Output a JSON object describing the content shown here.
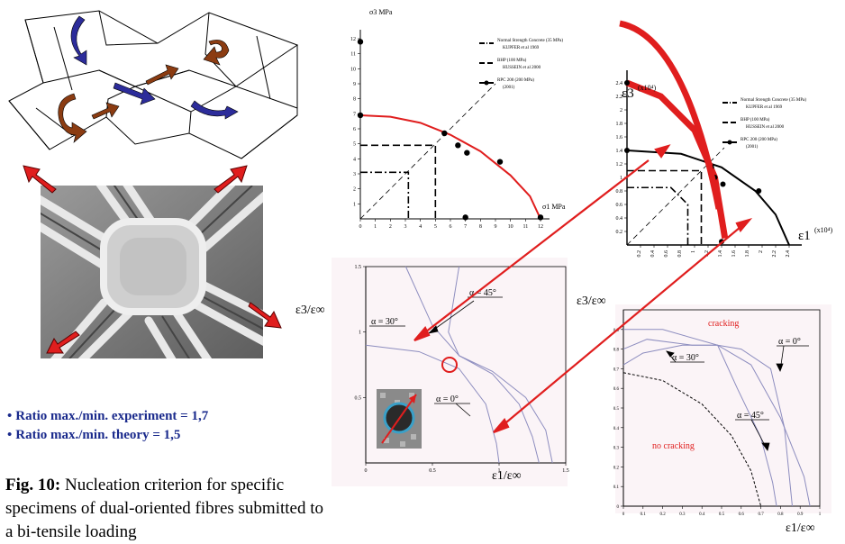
{
  "colors": {
    "accent_red": "#e01e1e",
    "arrow_blue": "#2c2c9a",
    "arrow_brown": "#8b3c12",
    "bullet_blue": "#1a2a8c",
    "panel_bg": "#fbf4f7"
  },
  "bullets": [
    {
      "text": "Ratio max./min. experiment = 1,7"
    },
    {
      "text": "Ratio max./min. theory = 1,5"
    }
  ],
  "caption": {
    "label": "Fig. 10:",
    "text": " Nucleation criterion for specific specimens of dual-oriented fibres submitted to a bi-tensile loading"
  },
  "chart_data": [
    {
      "type": "line",
      "panel": "stress",
      "ylabel": "σ3 MPa",
      "xlabel": "σ1 MPa",
      "xlim": [
        0,
        12
      ],
      "ylim": [
        0,
        12
      ],
      "x_ticks": [
        "0",
        "1",
        "2",
        "3",
        "4",
        "5",
        "6",
        "7",
        "8",
        "9",
        "10",
        "11",
        "12"
      ],
      "y_ticks": [
        "1",
        "2",
        "3",
        "4",
        "5",
        "6",
        "7",
        "8",
        "9",
        "10",
        "11",
        "12"
      ],
      "legend": [
        {
          "name": "Normal Strength Concrete (35 MPa)",
          "sub": "KUPFER et al 1969"
        },
        {
          "name": "BHP (100 MPa)",
          "sub": "HUSSEIN et al 2000"
        },
        {
          "name": "RPC 200 (200 MPa)",
          "sub": "(2001)"
        }
      ],
      "series": [
        {
          "name": "Normal Strength Concrete (35 MPa)",
          "x": [
            0,
            3.2,
            3.2
          ],
          "y": [
            3.1,
            3.1,
            0
          ]
        },
        {
          "name": "BHP (100 MPa)",
          "x": [
            0,
            5.0,
            5.0
          ],
          "y": [
            4.9,
            4.9,
            0
          ]
        },
        {
          "name": "RPC 200 (200 MPa)",
          "x": [
            0,
            2,
            4,
            6,
            8,
            10,
            11.3,
            12
          ],
          "y": [
            6.9,
            6.8,
            6.4,
            5.6,
            4.5,
            2.9,
            1.5,
            0
          ]
        }
      ],
      "points": [
        {
          "x": 0,
          "y": 11.8
        },
        {
          "x": 0,
          "y": 6.9
        },
        {
          "x": 5.6,
          "y": 5.7
        },
        {
          "x": 6.5,
          "y": 4.9
        },
        {
          "x": 7.1,
          "y": 4.4
        },
        {
          "x": 9.3,
          "y": 3.8
        },
        {
          "x": 7.0,
          "y": 0.1
        },
        {
          "x": 12.0,
          "y": 0.1
        }
      ]
    },
    {
      "type": "line",
      "panel": "strain",
      "ylabel": "ε3",
      "ylabel_unit": "(x10⁴)",
      "xlabel": "ε1",
      "xlabel_unit": "(x10⁴)",
      "xlim": [
        0,
        2.4
      ],
      "ylim": [
        0,
        2.4
      ],
      "x_ticks": [
        "0.2",
        "0.4",
        "0.6",
        "0.8",
        "1",
        "1.2",
        "1.4",
        "1.6",
        "1.8",
        "2",
        "2.2",
        "2.4"
      ],
      "y_ticks": [
        "0.2",
        "0.4",
        "0.6",
        "0.8",
        "1",
        "1.2",
        "1.4",
        "1.6",
        "1.8",
        "2",
        "2.2",
        "2.4"
      ],
      "legend": [
        {
          "name": "Normal Strength Concrete (35 MPa)",
          "sub": "KUPFER et al 1969"
        },
        {
          "name": "BHP (100 MPa)",
          "sub": "HUSSEIN et al 2000"
        },
        {
          "name": "RPC 200 (200 MPa)",
          "sub": "(2001)"
        }
      ],
      "series": [
        {
          "name": "Normal Strength Concrete (35 MPa)",
          "x": [
            0,
            0.65,
            0.9,
            0.9
          ],
          "y": [
            0.85,
            0.85,
            0.6,
            0
          ]
        },
        {
          "name": "BHP (100 MPa)",
          "x": [
            0,
            1.1,
            1.1
          ],
          "y": [
            1.1,
            1.1,
            0
          ]
        },
        {
          "name": "RPC 200 (200 MPa)",
          "x": [
            0,
            0.8,
            1.4,
            1.9,
            2.2,
            2.4
          ],
          "y": [
            1.4,
            1.35,
            1.15,
            0.8,
            0.45,
            0
          ]
        },
        {
          "name": "bold",
          "x": [
            0,
            0.5,
            1.0,
            1.3,
            1.45
          ],
          "y": [
            2.4,
            2.2,
            1.7,
            1.0,
            0.1
          ]
        }
      ],
      "points": [
        {
          "x": 0,
          "y": 2.4
        },
        {
          "x": 0,
          "y": 1.4
        },
        {
          "x": 1.25,
          "y": 1.15
        },
        {
          "x": 1.3,
          "y": 1.0
        },
        {
          "x": 1.42,
          "y": 0.9
        },
        {
          "x": 1.95,
          "y": 0.8
        },
        {
          "x": 1.4,
          "y": 0.05
        }
      ]
    },
    {
      "type": "line",
      "panel": "theory-left",
      "ylabel": "ε3/ε∞",
      "xlabel": "ε1/ε∞",
      "xlim": [
        0,
        1.5
      ],
      "ylim": [
        0,
        1.5
      ],
      "x_ticks": [
        "0",
        "0.5",
        "1",
        "1.5"
      ],
      "y_ticks": [
        "0.5",
        "1",
        "1.5"
      ],
      "annotations": [
        "α = 30°",
        "α = 45°",
        "α = 0°"
      ],
      "series": [
        {
          "name": "α = 0°",
          "x": [
            0,
            0.4,
            0.7,
            0.9,
            0.98,
            1.0
          ],
          "y": [
            0.9,
            0.85,
            0.72,
            0.45,
            0.15,
            0
          ]
        },
        {
          "name": "α = 30°",
          "x": [
            0.3,
            0.5,
            0.7,
            0.95,
            1.15,
            1.25,
            1.3
          ],
          "y": [
            1.5,
            1.05,
            0.82,
            0.68,
            0.45,
            0.2,
            0
          ]
        },
        {
          "name": "α = 45°",
          "x": [
            0.7,
            0.62,
            0.7,
            0.95,
            1.2,
            1.35,
            1.4
          ],
          "y": [
            1.5,
            1.0,
            0.82,
            0.7,
            0.5,
            0.25,
            0
          ]
        }
      ]
    },
    {
      "type": "line",
      "panel": "theory-right",
      "ylabel": "ε3/ε∞",
      "xlabel": "ε1/ε∞",
      "xlim": [
        0,
        1
      ],
      "ylim": [
        0,
        1
      ],
      "x_ticks": [
        "0",
        "0.1",
        "0.2",
        "0.3",
        "0.4",
        "0.5",
        "0.6",
        "0.7",
        "0.8",
        "0.9",
        "1"
      ],
      "y_ticks": [
        "0",
        "0.1",
        "0.2",
        "0.3",
        "0.4",
        "0.5",
        "0.6",
        "0.7",
        "0.8",
        "0.9"
      ],
      "annotations": [
        "cracking",
        "α = 0°",
        "α = 30°",
        "α = 45°",
        "no cracking"
      ],
      "series": [
        {
          "name": "α = 0°",
          "x": [
            0,
            0.2,
            0.48,
            0.6,
            0.75,
            0.82,
            0.86
          ],
          "y": [
            0.9,
            0.9,
            0.82,
            0.8,
            0.7,
            0.4,
            0
          ]
        },
        {
          "name": "α = 30°",
          "x": [
            0,
            0.12,
            0.35,
            0.48,
            0.65,
            0.8,
            0.92,
            0.95
          ],
          "y": [
            0.8,
            0.85,
            0.82,
            0.82,
            0.72,
            0.45,
            0.15,
            0
          ]
        },
        {
          "name": "α = 45°",
          "x": [
            0,
            0.1,
            0.3,
            0.48,
            0.58,
            0.7,
            0.76,
            0.78
          ],
          "y": [
            0.72,
            0.78,
            0.82,
            0.82,
            0.6,
            0.35,
            0.12,
            0
          ]
        },
        {
          "name": "dashed",
          "x": [
            0,
            0.2,
            0.4,
            0.55,
            0.65,
            0.7
          ],
          "y": [
            0.68,
            0.64,
            0.52,
            0.36,
            0.18,
            0
          ]
        }
      ]
    }
  ]
}
